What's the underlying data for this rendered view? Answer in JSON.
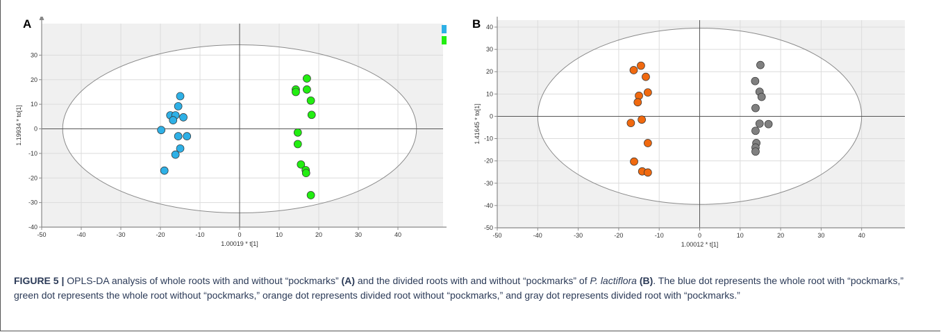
{
  "panels": [
    {
      "letter": "A",
      "ylabel": "1.19934 * to[1]",
      "xlabel": "1.00019 * t[1]",
      "legend_colors": [
        "#2eb0e6",
        "#22ee11"
      ]
    },
    {
      "letter": "B",
      "ylabel": "1.41645 * to[1]",
      "xlabel": "1.00012 * t[1]",
      "legend_colors": [
        "#f0690f",
        "#808080"
      ]
    }
  ],
  "caption": {
    "figure_label": "FIGURE 5 |",
    "text_1": " OPLS-DA analysis of whole roots with and without “pockmarks” ",
    "ref_a": "(A)",
    "text_2": " and the divided roots with and without “pockmarks” of ",
    "species": "P. lactiflora",
    "text_3": " ",
    "ref_b": "(B)",
    "text_4": ". The blue dot represents the whole root with “pockmarks,” green dot represents the whole root without “pockmarks,” orange dot represents divided root without “pockmarks,” and gray dot represents divided root with “pockmarks.”"
  },
  "chart_data": [
    {
      "type": "scatter",
      "title": "",
      "xlabel": "1.00019 * t[1]",
      "ylabel": "1.19934 * to[1]",
      "xlim": [
        -50,
        50
      ],
      "ylim": [
        -40,
        40
      ],
      "xticks": [
        -50,
        -40,
        -30,
        -20,
        -10,
        0,
        10,
        20,
        30,
        40
      ],
      "yticks": [
        -40,
        -30,
        -20,
        -10,
        0,
        10,
        20,
        30
      ],
      "ellipse": {
        "center": [
          0,
          0
        ],
        "rx": 44.7,
        "ry": 34.2
      },
      "grid": true,
      "legend": "top-right",
      "series": [
        {
          "color": "#2eb0e6",
          "points": [
            [
              -15,
              13.3
            ],
            [
              -15.5,
              9.2
            ],
            [
              -17.5,
              5.5
            ],
            [
              -16.2,
              5.5
            ],
            [
              -14.2,
              4.7
            ],
            [
              -16.8,
              3.5
            ],
            [
              -19.8,
              -0.5
            ],
            [
              -15.5,
              -3
            ],
            [
              -13.3,
              -3
            ],
            [
              -15,
              -8
            ],
            [
              -16.2,
              -10.5
            ],
            [
              -19,
              -17
            ]
          ]
        },
        {
          "color": "#22ee11",
          "points": [
            [
              17,
              20.5
            ],
            [
              14.2,
              16
            ],
            [
              17,
              16
            ],
            [
              14.2,
              15
            ],
            [
              18,
              11.5
            ],
            [
              18.2,
              5.7
            ],
            [
              14.7,
              -1.5
            ],
            [
              14.7,
              -6.2
            ],
            [
              15.5,
              -14.5
            ],
            [
              16.7,
              -16.8
            ],
            [
              16.8,
              -18
            ],
            [
              18,
              -27
            ]
          ]
        }
      ]
    },
    {
      "type": "scatter",
      "title": "",
      "xlabel": "1.00012 * t[1]",
      "ylabel": "1.41645 * to[1]",
      "xlim": [
        -50,
        50
      ],
      "ylim": [
        -50,
        40
      ],
      "xticks": [
        -50,
        -40,
        -30,
        -20,
        -10,
        0,
        10,
        20,
        30,
        40
      ],
      "yticks": [
        -50,
        -40,
        -30,
        -20,
        -10,
        0,
        10,
        20,
        30,
        40
      ],
      "ellipse": {
        "center": [
          0,
          0
        ],
        "rx": 40,
        "ry": 39.5
      },
      "grid": true,
      "legend": "top-right",
      "series": [
        {
          "color": "#f0690f",
          "points": [
            [
              -14.5,
              22.7
            ],
            [
              -16.3,
              20.7
            ],
            [
              -13.3,
              17.7
            ],
            [
              -15,
              9.2
            ],
            [
              -12.8,
              10.7
            ],
            [
              -15.3,
              6.3
            ],
            [
              -17,
              -3
            ],
            [
              -14.3,
              -1.5
            ],
            [
              -12.8,
              -12
            ],
            [
              -16.2,
              -20.3
            ],
            [
              -14.2,
              -24.7
            ],
            [
              -12.8,
              -25.2
            ]
          ]
        },
        {
          "color": "#808080",
          "points": [
            [
              15,
              23
            ],
            [
              13.7,
              15.8
            ],
            [
              14.8,
              11
            ],
            [
              15.3,
              8.7
            ],
            [
              13.8,
              3.7
            ],
            [
              14.8,
              -3.3
            ],
            [
              17,
              -3.5
            ],
            [
              13.8,
              -6.5
            ],
            [
              14,
              -12
            ],
            [
              13.8,
              -14
            ],
            [
              13.8,
              -15.8
            ]
          ]
        }
      ]
    }
  ]
}
